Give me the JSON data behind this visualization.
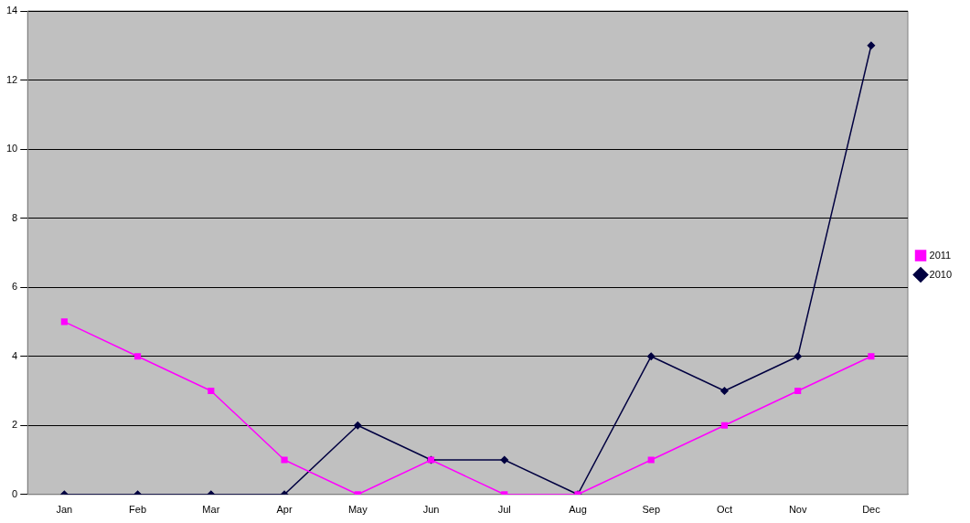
{
  "chart_data": {
    "type": "line",
    "categories": [
      "Jan",
      "Feb",
      "Mar",
      "Apr",
      "May",
      "Jun",
      "Jul",
      "Aug",
      "Sep",
      "Oct",
      "Nov",
      "Dec"
    ],
    "series": [
      {
        "name": "2010",
        "color": "#000040",
        "marker": "diamond",
        "values": [
          0,
          0,
          0,
          0,
          2,
          1,
          1,
          0,
          4,
          3,
          4,
          13
        ]
      },
      {
        "name": "2011",
        "color": "#ff00ff",
        "marker": "square",
        "values": [
          5,
          4,
          3,
          1,
          0,
          1,
          0,
          0,
          1,
          2,
          3,
          4
        ]
      }
    ],
    "ylim": [
      0,
      14
    ],
    "yticks": [
      0,
      2,
      4,
      6,
      8,
      10,
      12,
      14
    ],
    "grid": "y",
    "legend": "right"
  }
}
